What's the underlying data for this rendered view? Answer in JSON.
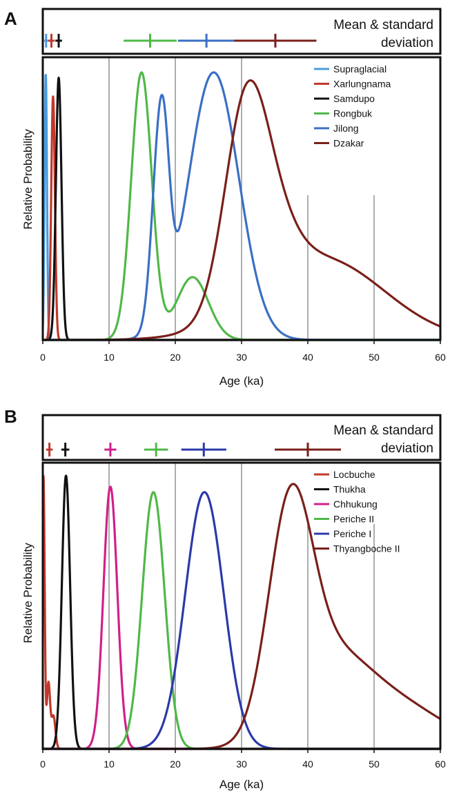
{
  "chart_data": [
    {
      "panel_label": "A",
      "type": "line",
      "inset_label_line1": "Mean & standard",
      "inset_label_line2": "deviation",
      "xlabel": "Age (ka)",
      "ylabel": "Relative Probability",
      "xlim": [
        0,
        60
      ],
      "xticks": [
        "0",
        "10",
        "20",
        "30",
        "40",
        "50",
        "60"
      ],
      "legend_position": "top-right",
      "series": [
        {
          "name": "Supraglacial",
          "color": "#4a9be0",
          "components": [
            {
              "mu": 0.45,
              "sigma": 0.18,
              "amp": 1.0
            }
          ],
          "peak_probability": 0.99,
          "mean_sd": [
            0.5,
            0.3
          ]
        },
        {
          "name": "Xarlungnama",
          "color": "#c0392b",
          "components": [
            {
              "mu": 1.55,
              "sigma": 0.28,
              "amp": 1.0
            }
          ],
          "peak_probability": 0.91,
          "mean_sd": [
            1.3,
            0.5
          ]
        },
        {
          "name": "Samdupo",
          "color": "#111111",
          "components": [
            {
              "mu": 2.4,
              "sigma": 0.42,
              "amp": 1.0
            }
          ],
          "peak_probability": 0.98,
          "mean_sd": [
            2.4,
            0.5
          ]
        },
        {
          "name": "Rongbuk",
          "color": "#4fb848",
          "components": [
            {
              "mu": 14.9,
              "sigma": 1.55,
              "amp": 1.0
            },
            {
              "mu": 22.6,
              "sigma": 2.4,
              "amp": 0.235
            }
          ],
          "peak_probability": 1.0,
          "mean_sd": [
            16.2,
            4.0
          ]
        },
        {
          "name": "Jilong",
          "color": "#3a6fc4",
          "components": [
            {
              "mu": 17.4,
              "sigma": 1.1,
              "amp": 0.51
            },
            {
              "mu": 18.4,
              "sigma": 0.9,
              "amp": 0.33
            },
            {
              "mu": 25.8,
              "sigma": 3.8,
              "amp": 0.93
            }
          ],
          "peak_probability": 1.0,
          "mean_sd": [
            24.7,
            4.3
          ]
        },
        {
          "name": "Dzakar",
          "color": "#7a1f1a",
          "components": [
            {
              "mu": 30.5,
              "sigma": 3.2,
              "amp": 0.59
            },
            {
              "mu": 34.5,
              "sigma": 3.5,
              "amp": 0.18
            },
            {
              "mu": 42.0,
              "sigma": 9.5,
              "amp": 0.26
            }
          ],
          "peak_probability": 0.97,
          "mean_sd": [
            35.1,
            6.2
          ]
        }
      ]
    },
    {
      "panel_label": "B",
      "type": "line",
      "inset_label_line1": "Mean & standard",
      "inset_label_line2": "deviation",
      "xlabel": "Age (ka)",
      "ylabel": "Relative Probability",
      "xlim": [
        0,
        60
      ],
      "xticks": [
        "0",
        "10",
        "20",
        "30",
        "40",
        "50",
        "60"
      ],
      "legend_position": "top-right",
      "series": [
        {
          "name": "Locbuche",
          "color": "#c0392b",
          "components": [
            {
              "mu": 0.1,
              "sigma": 0.18,
              "amp": 1.0
            },
            {
              "mu": 0.85,
              "sigma": 0.25,
              "amp": 0.24
            },
            {
              "mu": 1.6,
              "sigma": 0.3,
              "amp": 0.12
            }
          ],
          "peak_probability": 1.0,
          "mean_sd": [
            1.0,
            0.5
          ]
        },
        {
          "name": "Thukha",
          "color": "#111111",
          "components": [
            {
              "mu": 3.5,
              "sigma": 0.62,
              "amp": 1.0
            }
          ],
          "peak_probability": 1.0,
          "mean_sd": [
            3.4,
            0.6
          ]
        },
        {
          "name": "Chhukung",
          "color": "#d0208a",
          "components": [
            {
              "mu": 10.2,
              "sigma": 1.05,
              "amp": 1.0
            }
          ],
          "peak_probability": 0.96,
          "mean_sd": [
            10.2,
            0.9
          ]
        },
        {
          "name": "Periche II",
          "color": "#4fb848",
          "components": [
            {
              "mu": 16.7,
              "sigma": 1.7,
              "amp": 1.0
            }
          ],
          "peak_probability": 0.94,
          "mean_sd": [
            17.1,
            1.8
          ]
        },
        {
          "name": "Periche I",
          "color": "#2b3aa8",
          "components": [
            {
              "mu": 24.4,
              "sigma": 2.9,
              "amp": 1.0
            }
          ],
          "peak_probability": 0.94,
          "mean_sd": [
            24.3,
            3.4
          ]
        },
        {
          "name": "Thyangboche II",
          "color": "#7a1f1a",
          "components": [
            {
              "mu": 37.3,
              "sigma": 3.3,
              "amp": 0.75
            },
            {
              "mu": 43.0,
              "sigma": 5.5,
              "amp": 0.24
            },
            {
              "mu": 52.0,
              "sigma": 8.0,
              "amp": 0.17
            }
          ],
          "peak_probability": 0.97,
          "mean_sd": [
            40.0,
            5.0
          ]
        }
      ]
    }
  ]
}
